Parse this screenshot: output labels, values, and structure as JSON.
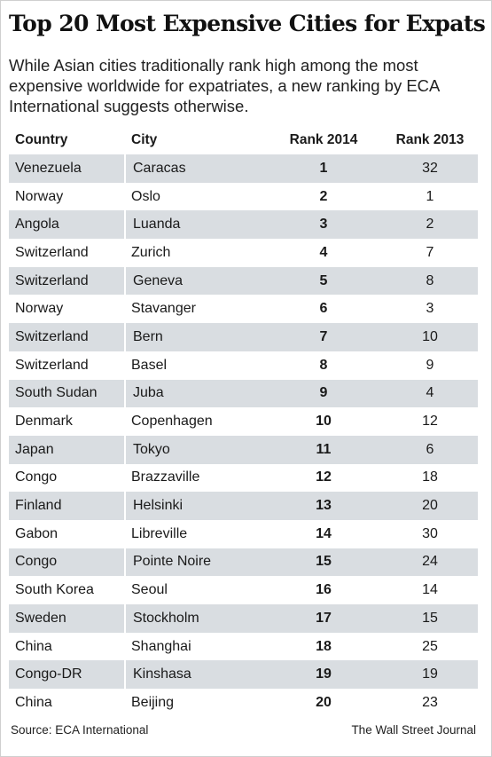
{
  "title": "Top 20 Most Expensive Cities for Expats",
  "subtitle": "While Asian cities traditionally rank high among the most expensive worldwide for expatriates, a new ranking by ECA International suggests otherwise.",
  "source": "Source: ECA International",
  "credit": "The Wall Street Journal",
  "colors": {
    "stripe": "#d9dde1",
    "background": "#ffffff",
    "text": "#1a1a1a"
  },
  "chart_data": {
    "type": "table",
    "columns": [
      "Country",
      "City",
      "Rank 2014",
      "Rank 2013"
    ],
    "rows": [
      [
        "Venezuela",
        "Caracas",
        "1",
        "32"
      ],
      [
        "Norway",
        "Oslo",
        "2",
        "1"
      ],
      [
        "Angola",
        "Luanda",
        "3",
        "2"
      ],
      [
        "Switzerland",
        "Zurich",
        "4",
        "7"
      ],
      [
        "Switzerland",
        "Geneva",
        "5",
        "8"
      ],
      [
        "Norway",
        "Stavanger",
        "6",
        "3"
      ],
      [
        "Switzerland",
        "Bern",
        "7",
        "10"
      ],
      [
        "Switzerland",
        "Basel",
        "8",
        "9"
      ],
      [
        "South Sudan",
        "Juba",
        "9",
        "4"
      ],
      [
        "Denmark",
        "Copenhagen",
        "10",
        "12"
      ],
      [
        "Japan",
        "Tokyo",
        "11",
        "6"
      ],
      [
        "Congo",
        "Brazzaville",
        "12",
        "18"
      ],
      [
        "Finland",
        "Helsinki",
        "13",
        "20"
      ],
      [
        "Gabon",
        "Libreville",
        "14",
        "30"
      ],
      [
        "Congo",
        "Pointe Noire",
        "15",
        "24"
      ],
      [
        "South Korea",
        "Seoul",
        "16",
        "14"
      ],
      [
        "Sweden",
        "Stockholm",
        "17",
        "15"
      ],
      [
        "China",
        "Shanghai",
        "18",
        "25"
      ],
      [
        "Congo-DR",
        "Kinshasa",
        "19",
        "19"
      ],
      [
        "China",
        "Beijing",
        "20",
        "23"
      ]
    ]
  }
}
